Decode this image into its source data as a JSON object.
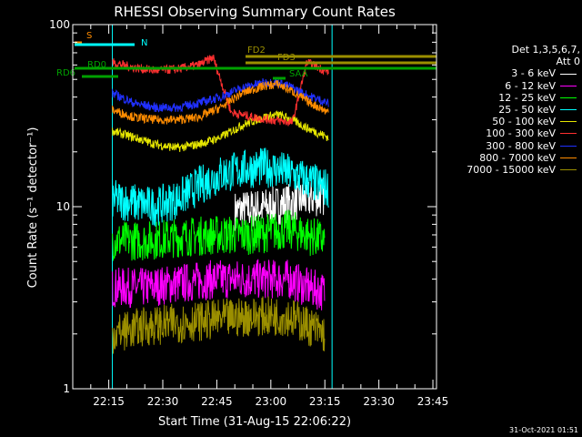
{
  "chart_data": {
    "type": "line",
    "title": "RHESSI Observing Summary Count Rates",
    "xlabel": "Start Time (31-Aug-15 22:06:22)",
    "ylabel": "Count Rate (s⁻¹ detector⁻¹)",
    "yscale": "log",
    "ylim": [
      1,
      100
    ],
    "yticks": [
      "1",
      "10",
      "100"
    ],
    "xlim_minutes_after_2200": [
      5,
      106
    ],
    "xticks": [
      {
        "label": "22:15",
        "m": 15
      },
      {
        "label": "22:30",
        "m": 30
      },
      {
        "label": "22:45",
        "m": 45
      },
      {
        "label": "23:00",
        "m": 60
      },
      {
        "label": "23:15",
        "m": 75
      },
      {
        "label": "23:30",
        "m": 90
      },
      {
        "label": "23:45",
        "m": 105
      }
    ],
    "data_gaps_minutes_after_2200": [
      [
        5,
        16
      ],
      [
        77,
        106
      ]
    ],
    "series": [
      {
        "name": "3 - 6 keV",
        "color": "#ffffff",
        "values": [
          [
            50,
            9.5
          ],
          [
            60,
            10
          ],
          [
            65,
            10.5
          ],
          [
            70,
            11
          ],
          [
            75,
            11.5
          ]
        ]
      },
      {
        "name": "6 - 12 keV",
        "color": "#ff00ff",
        "values": [
          [
            16,
            3.6
          ],
          [
            25,
            3.6
          ],
          [
            35,
            3.8
          ],
          [
            45,
            4
          ],
          [
            55,
            4
          ],
          [
            65,
            4
          ],
          [
            70,
            3.6
          ],
          [
            75,
            3.4
          ]
        ]
      },
      {
        "name": "12 - 25 keV",
        "color": "#00ff00",
        "values": [
          [
            16,
            6.5
          ],
          [
            25,
            6.5
          ],
          [
            35,
            6.8
          ],
          [
            45,
            7
          ],
          [
            55,
            7
          ],
          [
            65,
            7.5
          ],
          [
            70,
            7
          ],
          [
            75,
            6.5
          ]
        ]
      },
      {
        "name": "25 - 50 keV",
        "color": "#00ffff",
        "values": [
          [
            16,
            11
          ],
          [
            22,
            10.5
          ],
          [
            28,
            10
          ],
          [
            34,
            11
          ],
          [
            40,
            13
          ],
          [
            46,
            15
          ],
          [
            52,
            16
          ],
          [
            58,
            16.5
          ],
          [
            62,
            16
          ],
          [
            66,
            15
          ],
          [
            70,
            14
          ],
          [
            76,
            12.5
          ]
        ]
      },
      {
        "name": "50 - 100 keV",
        "color": "#e6e600",
        "values": [
          [
            16,
            26
          ],
          [
            22,
            24
          ],
          [
            28,
            22
          ],
          [
            34,
            21
          ],
          [
            40,
            22
          ],
          [
            46,
            24
          ],
          [
            52,
            28
          ],
          [
            58,
            31
          ],
          [
            62,
            32
          ],
          [
            66,
            30
          ],
          [
            70,
            27
          ],
          [
            76,
            24
          ]
        ]
      },
      {
        "name": "100 - 300 keV",
        "color": "#ff3030",
        "values": [
          [
            16,
            62
          ],
          [
            22,
            58
          ],
          [
            28,
            56
          ],
          [
            34,
            57
          ],
          [
            40,
            60
          ],
          [
            44,
            66
          ],
          [
            49,
            33
          ],
          [
            55,
            31
          ],
          [
            60,
            30
          ],
          [
            66,
            29
          ],
          [
            70,
            62
          ],
          [
            76,
            55
          ]
        ]
      },
      {
        "name": "300 - 800 keV",
        "color": "#2030ff",
        "values": [
          [
            16,
            42
          ],
          [
            22,
            37
          ],
          [
            28,
            35
          ],
          [
            34,
            35
          ],
          [
            40,
            37
          ],
          [
            46,
            40
          ],
          [
            52,
            45
          ],
          [
            58,
            48
          ],
          [
            62,
            48
          ],
          [
            66,
            45
          ],
          [
            70,
            41
          ],
          [
            76,
            37
          ]
        ]
      },
      {
        "name": "800 - 7000 keV",
        "color": "#ff8c00",
        "values": [
          [
            16,
            34
          ],
          [
            22,
            31
          ],
          [
            28,
            30
          ],
          [
            34,
            30
          ],
          [
            40,
            31
          ],
          [
            46,
            35
          ],
          [
            52,
            42
          ],
          [
            58,
            46
          ],
          [
            62,
            47
          ],
          [
            66,
            43
          ],
          [
            70,
            38
          ],
          [
            76,
            33
          ]
        ]
      },
      {
        "name": "7000 - 15000 keV",
        "color": "#9b8f00",
        "values": [
          [
            16,
            2
          ],
          [
            25,
            2.2
          ],
          [
            35,
            2.3
          ],
          [
            45,
            2.4
          ],
          [
            55,
            2.5
          ],
          [
            65,
            2.5
          ],
          [
            75,
            2
          ]
        ]
      }
    ],
    "annotations": [
      {
        "text": "S",
        "color": "#ff8c00"
      },
      {
        "text": "N",
        "color": "#00ffff"
      },
      {
        "text": "FD2",
        "color": "#9b8f00"
      },
      {
        "text": "FD3",
        "color": "#9b8f00"
      },
      {
        "text": "RD0",
        "color": "#00a000"
      },
      {
        "text": "RD6",
        "color": "#00a000"
      },
      {
        "text": "SAA",
        "color": "#00a000"
      }
    ],
    "legend_header": [
      "Det 1,3,5,6,7,",
      "Att 0"
    ],
    "legend_placement": "right",
    "footer_stamp": "31-Oct-2021 01:51"
  }
}
